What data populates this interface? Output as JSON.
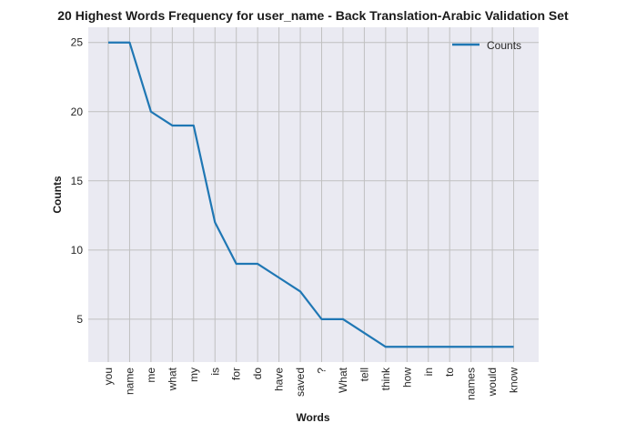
{
  "chart_data": {
    "type": "line",
    "title": "20 Highest Words Frequency for user_name - Back Translation-Arabic Validation Set",
    "xlabel": "Words",
    "ylabel": "Counts",
    "categories": [
      "you",
      "name",
      "me",
      "what",
      "my",
      "is",
      "for",
      "do",
      "have",
      "saved",
      "?",
      "What",
      "tell",
      "think",
      "how",
      "in",
      "to",
      "names",
      "would",
      "know"
    ],
    "series": [
      {
        "name": "Counts",
        "values": [
          25,
          25,
          20,
          19,
          19,
          12,
          9,
          9,
          8,
          7,
          5,
          5,
          4,
          3,
          3,
          3,
          3,
          3,
          3,
          3
        ]
      }
    ],
    "yticks": [
      5,
      10,
      15,
      20,
      25
    ],
    "ylim": [
      1.9,
      26.1
    ],
    "grid": true,
    "legend_position": "top-right",
    "colors": {
      "line": "#1f77b4",
      "plot_background": "#eaeaf2",
      "grid": "#c0c0c0"
    }
  }
}
